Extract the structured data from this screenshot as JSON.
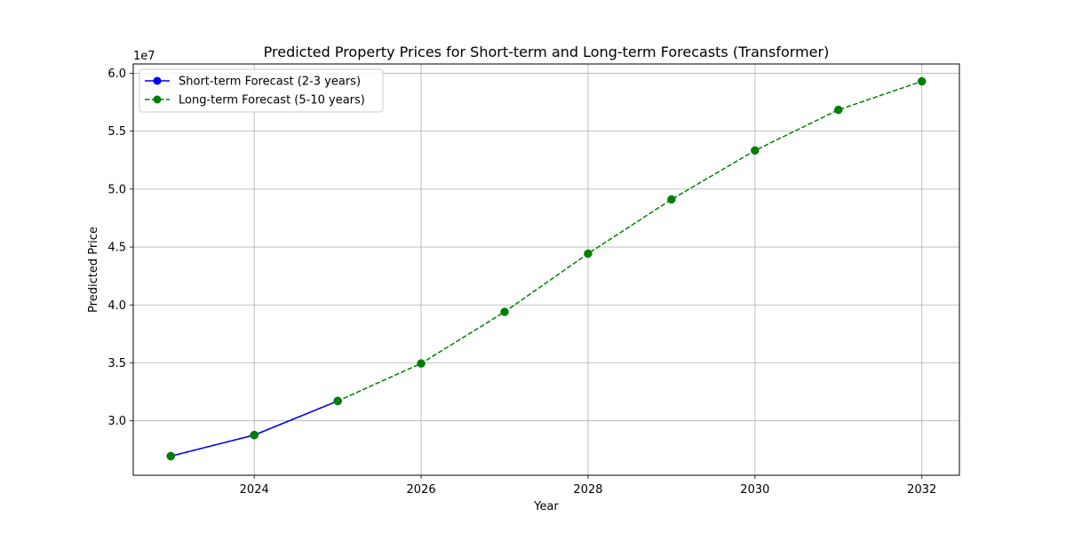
{
  "chart_data": {
    "type": "line",
    "title": "Predicted Property Prices for Short-term and Long-term Forecasts (Transformer)",
    "xlabel": "Year",
    "ylabel": "Predicted Price",
    "y_offset_label": "1e7",
    "xlim": [
      2022.55,
      2032.45
    ],
    "ylim": [
      2.53,
      6.08
    ],
    "x_ticks": [
      2024,
      2026,
      2028,
      2030,
      2032
    ],
    "x_tick_labels": [
      "2024",
      "2026",
      "2028",
      "2030",
      "2032"
    ],
    "y_ticks": [
      3.0,
      3.5,
      4.0,
      4.5,
      5.0,
      5.5,
      6.0
    ],
    "y_tick_labels": [
      "3.0",
      "3.5",
      "4.0",
      "4.5",
      "5.0",
      "5.5",
      "6.0"
    ],
    "grid": true,
    "legend_position": "top-left",
    "series": [
      {
        "name": "Short-term Forecast (2-3 years)",
        "color": "#0000ff",
        "line_style": "solid",
        "marker": "circle",
        "x": [
          2023,
          2024,
          2025
        ],
        "y": [
          2.695,
          2.877,
          3.171
        ]
      },
      {
        "name": "Long-term Forecast (5-10 years)",
        "color": "#008000",
        "line_style": "dashed",
        "marker": "circle",
        "x": [
          2023,
          2024,
          2025,
          2026,
          2027,
          2028,
          2029,
          2030,
          2031,
          2032
        ],
        "y": [
          2.695,
          2.877,
          3.171,
          3.495,
          3.94,
          4.443,
          4.911,
          5.333,
          5.684,
          5.93
        ]
      }
    ]
  }
}
